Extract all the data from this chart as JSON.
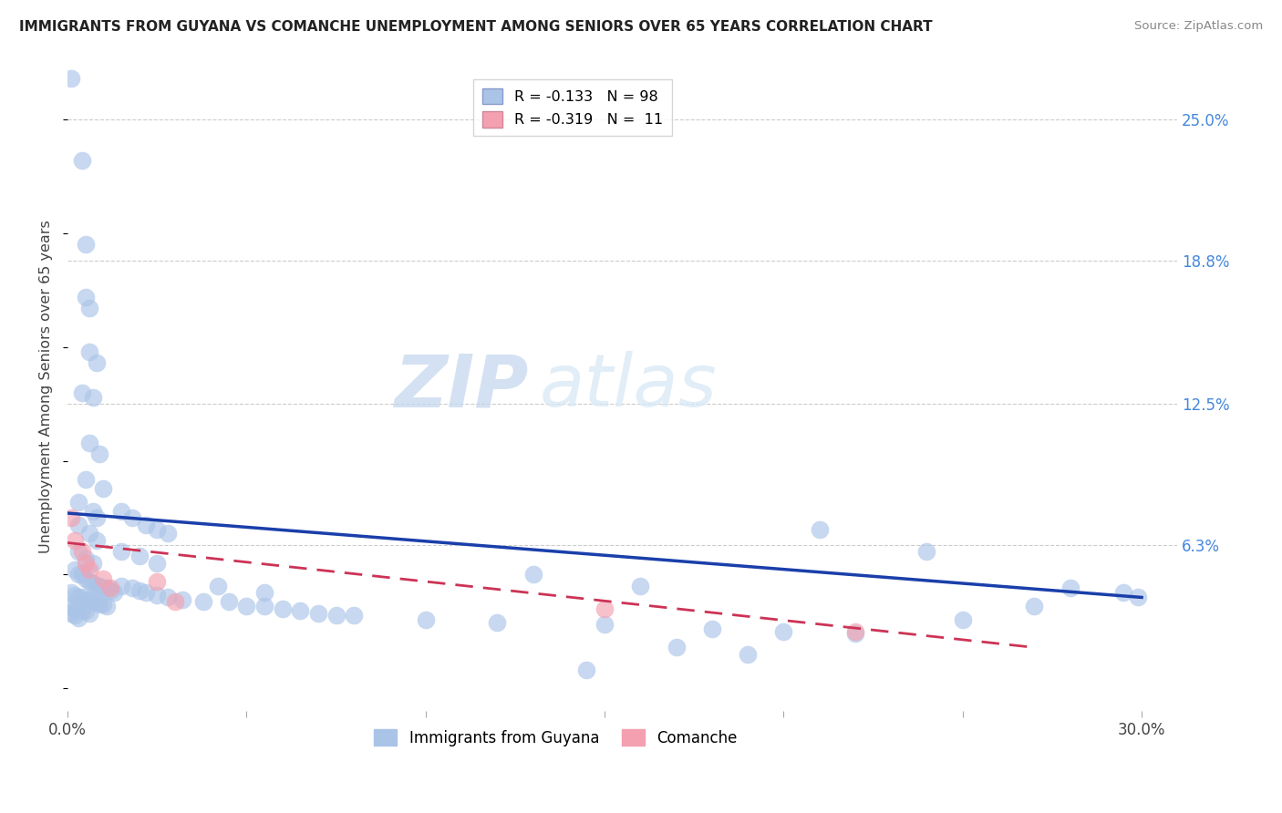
{
  "title": "IMMIGRANTS FROM GUYANA VS COMANCHE UNEMPLOYMENT AMONG SENIORS OVER 65 YEARS CORRELATION CHART",
  "source": "Source: ZipAtlas.com",
  "ylabel": "Unemployment Among Seniors over 65 years",
  "xlim": [
    0.0,
    0.31
  ],
  "ylim": [
    -0.01,
    0.275
  ],
  "ytick_labels_right": [
    "25.0%",
    "18.8%",
    "12.5%",
    "6.3%"
  ],
  "ytick_positions_right": [
    0.25,
    0.188,
    0.125,
    0.063
  ],
  "blue_color": "#aac4e8",
  "pink_color": "#f4a0b0",
  "trend_blue_color": "#1a3faa",
  "trend_pink_color": "#cc3355",
  "blue_scatter": [
    [
      0.001,
      0.268
    ],
    [
      0.004,
      0.232
    ],
    [
      0.005,
      0.195
    ],
    [
      0.005,
      0.172
    ],
    [
      0.006,
      0.167
    ],
    [
      0.006,
      0.148
    ],
    [
      0.008,
      0.143
    ],
    [
      0.004,
      0.13
    ],
    [
      0.007,
      0.128
    ],
    [
      0.006,
      0.108
    ],
    [
      0.009,
      0.103
    ],
    [
      0.005,
      0.092
    ],
    [
      0.01,
      0.088
    ],
    [
      0.003,
      0.082
    ],
    [
      0.007,
      0.078
    ],
    [
      0.008,
      0.075
    ],
    [
      0.003,
      0.072
    ],
    [
      0.006,
      0.068
    ],
    [
      0.008,
      0.065
    ],
    [
      0.003,
      0.06
    ],
    [
      0.005,
      0.057
    ],
    [
      0.007,
      0.055
    ],
    [
      0.002,
      0.052
    ],
    [
      0.003,
      0.05
    ],
    [
      0.004,
      0.05
    ],
    [
      0.005,
      0.048
    ],
    [
      0.006,
      0.047
    ],
    [
      0.007,
      0.046
    ],
    [
      0.008,
      0.045
    ],
    [
      0.009,
      0.045
    ],
    [
      0.01,
      0.044
    ],
    [
      0.011,
      0.044
    ],
    [
      0.012,
      0.043
    ],
    [
      0.013,
      0.042
    ],
    [
      0.001,
      0.042
    ],
    [
      0.002,
      0.041
    ],
    [
      0.003,
      0.04
    ],
    [
      0.004,
      0.04
    ],
    [
      0.005,
      0.039
    ],
    [
      0.006,
      0.039
    ],
    [
      0.007,
      0.038
    ],
    [
      0.008,
      0.038
    ],
    [
      0.009,
      0.037
    ],
    [
      0.01,
      0.037
    ],
    [
      0.011,
      0.036
    ],
    [
      0.001,
      0.036
    ],
    [
      0.002,
      0.035
    ],
    [
      0.003,
      0.035
    ],
    [
      0.004,
      0.034
    ],
    [
      0.005,
      0.034
    ],
    [
      0.006,
      0.033
    ],
    [
      0.001,
      0.033
    ],
    [
      0.002,
      0.032
    ],
    [
      0.003,
      0.031
    ],
    [
      0.015,
      0.078
    ],
    [
      0.018,
      0.075
    ],
    [
      0.022,
      0.072
    ],
    [
      0.025,
      0.07
    ],
    [
      0.028,
      0.068
    ],
    [
      0.015,
      0.06
    ],
    [
      0.02,
      0.058
    ],
    [
      0.025,
      0.055
    ],
    [
      0.015,
      0.045
    ],
    [
      0.018,
      0.044
    ],
    [
      0.02,
      0.043
    ],
    [
      0.022,
      0.042
    ],
    [
      0.025,
      0.041
    ],
    [
      0.028,
      0.04
    ],
    [
      0.032,
      0.039
    ],
    [
      0.038,
      0.038
    ],
    [
      0.05,
      0.036
    ],
    [
      0.06,
      0.035
    ],
    [
      0.07,
      0.033
    ],
    [
      0.08,
      0.032
    ],
    [
      0.1,
      0.03
    ],
    [
      0.12,
      0.029
    ],
    [
      0.15,
      0.028
    ],
    [
      0.18,
      0.026
    ],
    [
      0.2,
      0.025
    ],
    [
      0.22,
      0.024
    ],
    [
      0.21,
      0.07
    ],
    [
      0.24,
      0.06
    ],
    [
      0.28,
      0.044
    ],
    [
      0.295,
      0.042
    ],
    [
      0.17,
      0.018
    ],
    [
      0.19,
      0.015
    ],
    [
      0.145,
      0.008
    ],
    [
      0.299,
      0.04
    ],
    [
      0.13,
      0.05
    ],
    [
      0.16,
      0.045
    ],
    [
      0.25,
      0.03
    ],
    [
      0.27,
      0.036
    ],
    [
      0.045,
      0.038
    ],
    [
      0.055,
      0.036
    ],
    [
      0.065,
      0.034
    ],
    [
      0.075,
      0.032
    ],
    [
      0.042,
      0.045
    ],
    [
      0.055,
      0.042
    ]
  ],
  "pink_scatter": [
    [
      0.001,
      0.075
    ],
    [
      0.002,
      0.065
    ],
    [
      0.004,
      0.06
    ],
    [
      0.005,
      0.055
    ],
    [
      0.006,
      0.052
    ],
    [
      0.01,
      0.048
    ],
    [
      0.012,
      0.044
    ],
    [
      0.025,
      0.047
    ],
    [
      0.03,
      0.038
    ],
    [
      0.15,
      0.035
    ],
    [
      0.22,
      0.025
    ]
  ],
  "blue_trend_x": [
    0.0,
    0.3
  ],
  "blue_trend_y": [
    0.077,
    0.04
  ],
  "pink_trend_x": [
    0.0,
    0.27
  ],
  "pink_trend_y": [
    0.064,
    0.018
  ]
}
